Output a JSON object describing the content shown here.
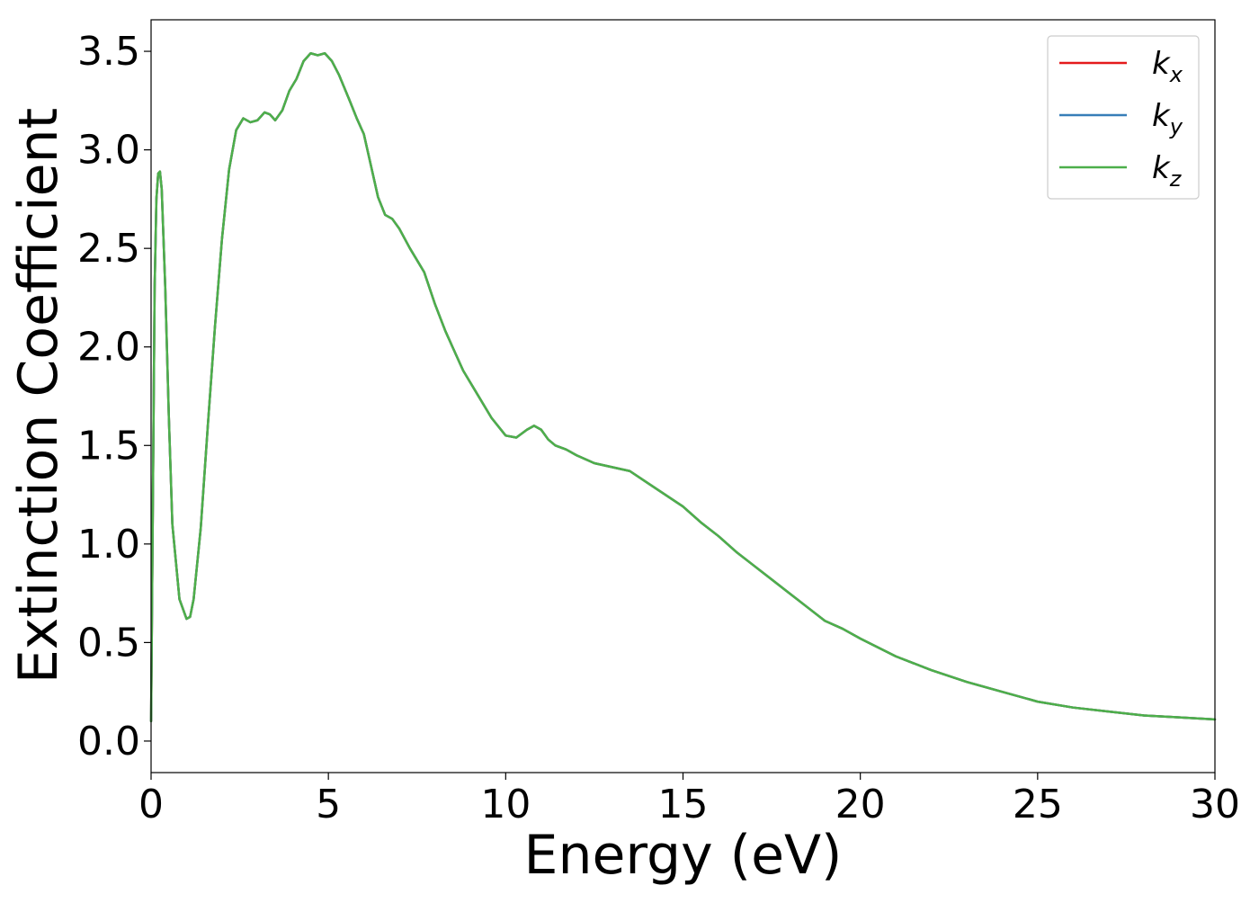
{
  "chart_data": {
    "type": "line",
    "xlabel": "Energy (eV)",
    "ylabel": "Extinction Coefficient",
    "xlim": [
      0,
      30
    ],
    "ylim": [
      -0.16,
      3.66
    ],
    "xticks": [
      "0",
      "5",
      "10",
      "15",
      "20",
      "25",
      "30"
    ],
    "yticks": [
      "0.0",
      "0.5",
      "1.0",
      "1.5",
      "2.0",
      "2.5",
      "3.0",
      "3.5"
    ],
    "grid": false,
    "legend_position": "top-right",
    "series": [
      {
        "name": "k",
        "subscript": "x",
        "color": "#e41a1c",
        "x": [
          0.0,
          0.05,
          0.1,
          0.15,
          0.2,
          0.25,
          0.3,
          0.4,
          0.5,
          0.6,
          0.8,
          1.0,
          1.1,
          1.2,
          1.4,
          1.6,
          1.8,
          2.0,
          2.2,
          2.4,
          2.6,
          2.8,
          3.0,
          3.2,
          3.35,
          3.5,
          3.7,
          3.9,
          4.1,
          4.3,
          4.5,
          4.7,
          4.9,
          5.1,
          5.3,
          5.6,
          5.8,
          6.0,
          6.2,
          6.4,
          6.6,
          6.8,
          7.0,
          7.3,
          7.5,
          7.7,
          8.0,
          8.3,
          8.5,
          8.8,
          9.2,
          9.6,
          10.0,
          10.3,
          10.6,
          10.8,
          11.0,
          11.2,
          11.4,
          11.7,
          12.0,
          12.5,
          13.0,
          13.5,
          14.0,
          14.5,
          15.0,
          15.5,
          16.0,
          16.5,
          17.0,
          17.5,
          18.0,
          18.5,
          19.0,
          19.5,
          20.0,
          21.0,
          22.0,
          23.0,
          24.0,
          25.0,
          26.0,
          27.0,
          28.0,
          29.0,
          30.0
        ],
        "values": [
          0.1,
          1.2,
          2.3,
          2.75,
          2.88,
          2.89,
          2.8,
          2.3,
          1.65,
          1.1,
          0.72,
          0.62,
          0.63,
          0.72,
          1.08,
          1.6,
          2.1,
          2.55,
          2.9,
          3.1,
          3.16,
          3.14,
          3.15,
          3.19,
          3.18,
          3.15,
          3.2,
          3.3,
          3.36,
          3.45,
          3.49,
          3.48,
          3.49,
          3.45,
          3.38,
          3.25,
          3.16,
          3.08,
          2.92,
          2.76,
          2.67,
          2.65,
          2.6,
          2.5,
          2.44,
          2.38,
          2.22,
          2.08,
          2.0,
          1.88,
          1.76,
          1.64,
          1.55,
          1.54,
          1.58,
          1.6,
          1.58,
          1.53,
          1.5,
          1.48,
          1.45,
          1.41,
          1.39,
          1.37,
          1.31,
          1.25,
          1.19,
          1.11,
          1.04,
          0.96,
          0.89,
          0.82,
          0.75,
          0.68,
          0.61,
          0.57,
          0.52,
          0.43,
          0.36,
          0.3,
          0.25,
          0.2,
          0.17,
          0.15,
          0.13,
          0.12,
          0.11
        ]
      },
      {
        "name": "k",
        "subscript": "y",
        "color": "#377eb8",
        "x": [
          0.0,
          0.05,
          0.1,
          0.15,
          0.2,
          0.25,
          0.3,
          0.4,
          0.5,
          0.6,
          0.8,
          1.0,
          1.1,
          1.2,
          1.4,
          1.6,
          1.8,
          2.0,
          2.2,
          2.4,
          2.6,
          2.8,
          3.0,
          3.2,
          3.35,
          3.5,
          3.7,
          3.9,
          4.1,
          4.3,
          4.5,
          4.7,
          4.9,
          5.1,
          5.3,
          5.6,
          5.8,
          6.0,
          6.2,
          6.4,
          6.6,
          6.8,
          7.0,
          7.3,
          7.5,
          7.7,
          8.0,
          8.3,
          8.5,
          8.8,
          9.2,
          9.6,
          10.0,
          10.3,
          10.6,
          10.8,
          11.0,
          11.2,
          11.4,
          11.7,
          12.0,
          12.5,
          13.0,
          13.5,
          14.0,
          14.5,
          15.0,
          15.5,
          16.0,
          16.5,
          17.0,
          17.5,
          18.0,
          18.5,
          19.0,
          19.5,
          20.0,
          21.0,
          22.0,
          23.0,
          24.0,
          25.0,
          26.0,
          27.0,
          28.0,
          29.0,
          30.0
        ],
        "values": [
          0.1,
          1.2,
          2.3,
          2.75,
          2.88,
          2.89,
          2.8,
          2.3,
          1.65,
          1.1,
          0.72,
          0.62,
          0.63,
          0.72,
          1.08,
          1.6,
          2.1,
          2.55,
          2.9,
          3.1,
          3.16,
          3.14,
          3.15,
          3.19,
          3.18,
          3.15,
          3.2,
          3.3,
          3.36,
          3.45,
          3.49,
          3.48,
          3.49,
          3.45,
          3.38,
          3.25,
          3.16,
          3.08,
          2.92,
          2.76,
          2.67,
          2.65,
          2.6,
          2.5,
          2.44,
          2.38,
          2.22,
          2.08,
          2.0,
          1.88,
          1.76,
          1.64,
          1.55,
          1.54,
          1.58,
          1.6,
          1.58,
          1.53,
          1.5,
          1.48,
          1.45,
          1.41,
          1.39,
          1.37,
          1.31,
          1.25,
          1.19,
          1.11,
          1.04,
          0.96,
          0.89,
          0.82,
          0.75,
          0.68,
          0.61,
          0.57,
          0.52,
          0.43,
          0.36,
          0.3,
          0.25,
          0.2,
          0.17,
          0.15,
          0.13,
          0.12,
          0.11
        ]
      },
      {
        "name": "k",
        "subscript": "z",
        "color": "#4daf4a",
        "x": [
          0.0,
          0.05,
          0.1,
          0.15,
          0.2,
          0.25,
          0.3,
          0.4,
          0.5,
          0.6,
          0.8,
          1.0,
          1.1,
          1.2,
          1.4,
          1.6,
          1.8,
          2.0,
          2.2,
          2.4,
          2.6,
          2.8,
          3.0,
          3.2,
          3.35,
          3.5,
          3.7,
          3.9,
          4.1,
          4.3,
          4.5,
          4.7,
          4.9,
          5.1,
          5.3,
          5.6,
          5.8,
          6.0,
          6.2,
          6.4,
          6.6,
          6.8,
          7.0,
          7.3,
          7.5,
          7.7,
          8.0,
          8.3,
          8.5,
          8.8,
          9.2,
          9.6,
          10.0,
          10.3,
          10.6,
          10.8,
          11.0,
          11.2,
          11.4,
          11.7,
          12.0,
          12.5,
          13.0,
          13.5,
          14.0,
          14.5,
          15.0,
          15.5,
          16.0,
          16.5,
          17.0,
          17.5,
          18.0,
          18.5,
          19.0,
          19.5,
          20.0,
          21.0,
          22.0,
          23.0,
          24.0,
          25.0,
          26.0,
          27.0,
          28.0,
          29.0,
          30.0
        ],
        "values": [
          0.1,
          1.2,
          2.3,
          2.75,
          2.88,
          2.89,
          2.8,
          2.3,
          1.65,
          1.1,
          0.72,
          0.62,
          0.63,
          0.72,
          1.08,
          1.6,
          2.1,
          2.55,
          2.9,
          3.1,
          3.16,
          3.14,
          3.15,
          3.19,
          3.18,
          3.15,
          3.2,
          3.3,
          3.36,
          3.45,
          3.49,
          3.48,
          3.49,
          3.45,
          3.38,
          3.25,
          3.16,
          3.08,
          2.92,
          2.76,
          2.67,
          2.65,
          2.6,
          2.5,
          2.44,
          2.38,
          2.22,
          2.08,
          2.0,
          1.88,
          1.76,
          1.64,
          1.55,
          1.54,
          1.58,
          1.6,
          1.58,
          1.53,
          1.5,
          1.48,
          1.45,
          1.41,
          1.39,
          1.37,
          1.31,
          1.25,
          1.19,
          1.11,
          1.04,
          0.96,
          0.89,
          0.82,
          0.75,
          0.68,
          0.61,
          0.57,
          0.52,
          0.43,
          0.36,
          0.3,
          0.25,
          0.2,
          0.17,
          0.15,
          0.13,
          0.12,
          0.11
        ]
      }
    ]
  }
}
